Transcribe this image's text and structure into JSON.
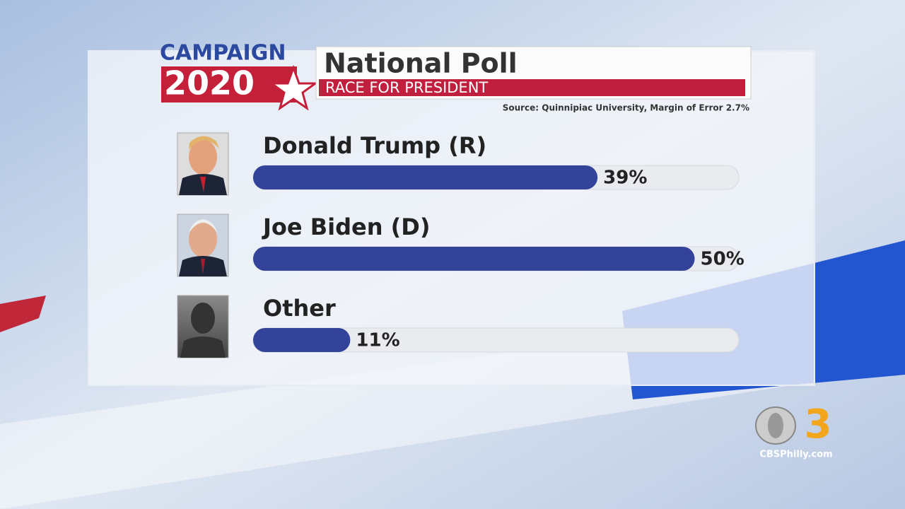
{
  "branding": {
    "campaign": "CAMPAIGN",
    "year": "2020"
  },
  "chart_data": {
    "type": "bar",
    "orientation": "horizontal",
    "title": "National Poll",
    "subtitle": "RACE FOR PRESIDENT",
    "source": "Source: Quinnipiac University, Margin of Error 2.7%",
    "categories": [
      "Donald Trump (R)",
      "Joe Biden (D)",
      "Other"
    ],
    "values": [
      39,
      50,
      11
    ],
    "value_labels": [
      "39%",
      "50%",
      "11%"
    ],
    "color": "#34439a",
    "xlim": [
      0,
      55
    ]
  },
  "logo": {
    "number": "3",
    "site": "CBSPhilly.com"
  }
}
